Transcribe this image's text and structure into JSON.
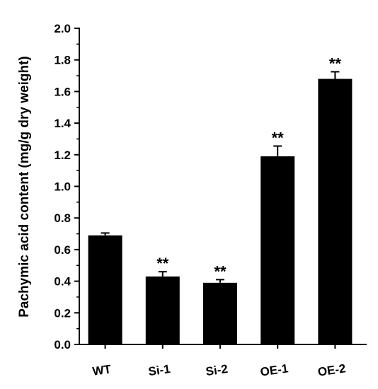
{
  "chart_data": {
    "type": "bar",
    "title": "",
    "xlabel": "",
    "ylabel": "Pachymic acid content (mg/g dry weight)",
    "ylim": [
      0,
      2.0
    ],
    "y_ticks": [
      "0.0",
      "0.2",
      "0.4",
      "0.6",
      "0.8",
      "1.0",
      "1.2",
      "1.4",
      "1.6",
      "1.8",
      "2.0"
    ],
    "categories": [
      "WT",
      "Si-1",
      "Si-2",
      "OE-1",
      "OE-2"
    ],
    "values": [
      0.69,
      0.43,
      0.39,
      1.19,
      1.68
    ],
    "errors": [
      0.015,
      0.03,
      0.02,
      0.065,
      0.045
    ],
    "significance": [
      "",
      "**",
      "**",
      "**",
      "**"
    ],
    "bar_color": "#000000",
    "grid": false,
    "legend": "none"
  }
}
